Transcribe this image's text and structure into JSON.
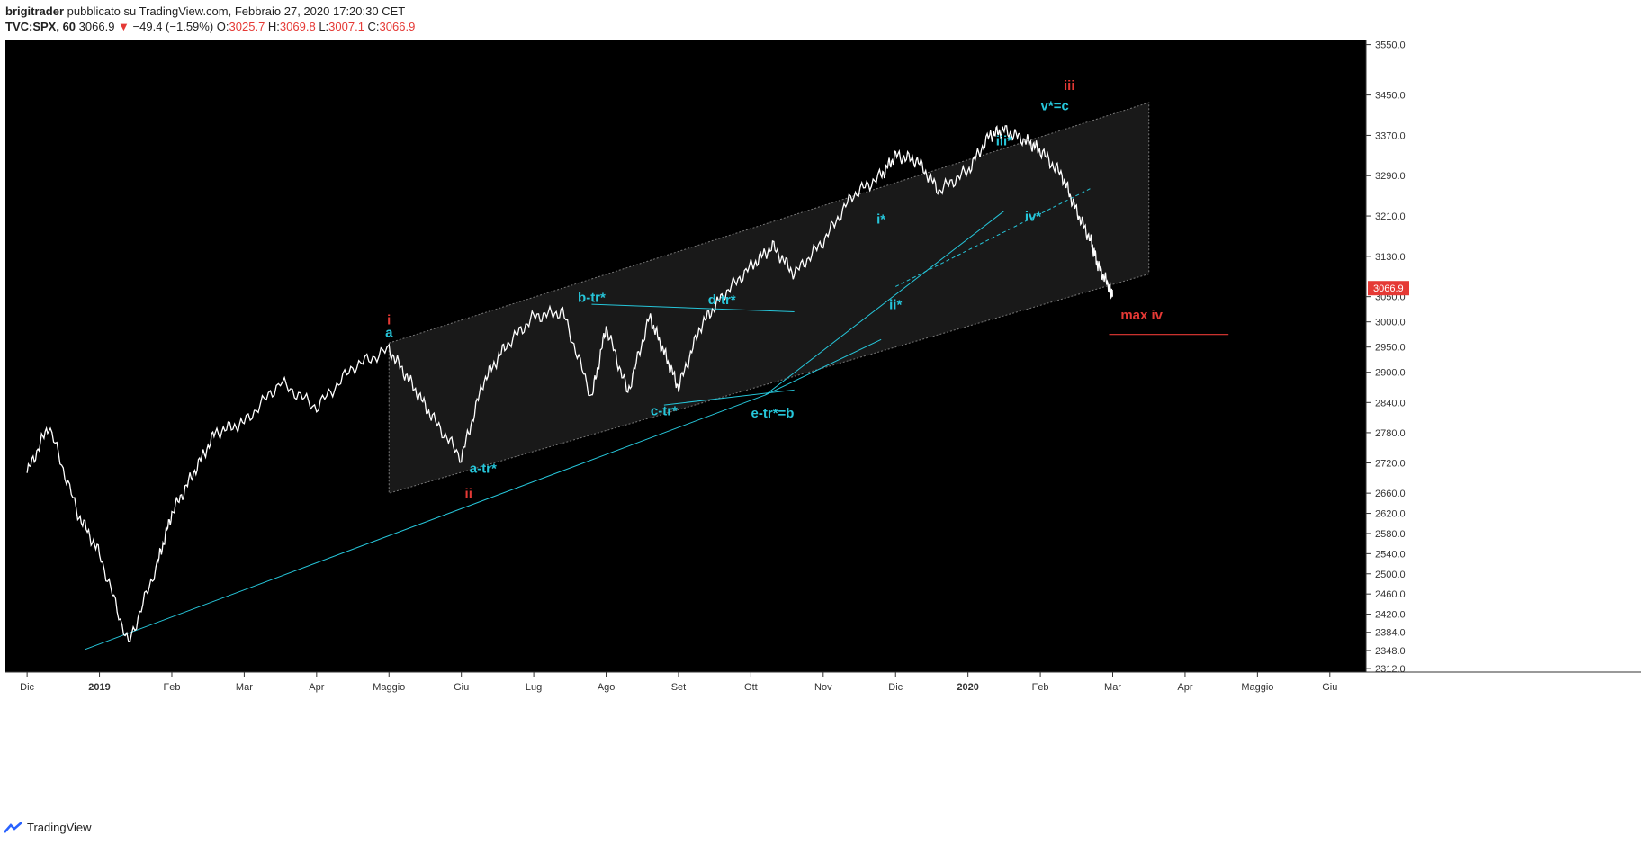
{
  "header": {
    "author": "brigitrader",
    "published": "pubblicato su TradingView.com, Febbraio 27, 2020 17:20:30 CET",
    "symbol": "TVC:SPX, 60",
    "last": "3066.9",
    "change": "−49.4 (−1.59%)",
    "o_label": "O:",
    "o_val": "3025.7",
    "h_label": "H:",
    "h_val": "3069.8",
    "l_label": "L:",
    "l_val": "3007.1",
    "c_label": "C:",
    "c_val": "3066.9"
  },
  "footer": {
    "brand": "TradingView"
  },
  "colors": {
    "background": "#000000",
    "price": "#ffffff",
    "annot_cyan": "#26c6da",
    "annot_red": "#e53935",
    "channel": "#1a1a1a"
  },
  "chart_data": {
    "type": "line",
    "yaxis_ticks": [
      "3550.0",
      "3450.0",
      "3370.0",
      "3290.0",
      "3210.0",
      "3130.0",
      "3050.0",
      "3000.0",
      "2950.0",
      "2900.0",
      "2840.0",
      "2780.0",
      "2720.0",
      "2660.0",
      "2620.0",
      "2580.0",
      "2540.0",
      "2500.0",
      "2460.0",
      "2420.0",
      "2384.0",
      "2348.0",
      "2312.0"
    ],
    "y_last_label": "3066.9",
    "xaxis_ticks": [
      "Dic",
      "2019",
      "Feb",
      "Mar",
      "Apr",
      "Maggio",
      "Giu",
      "Lug",
      "Ago",
      "Set",
      "Ott",
      "Nov",
      "Dic",
      "2020",
      "Feb",
      "Mar",
      "Apr",
      "Maggio",
      "Giu"
    ],
    "x": [
      0,
      0.3,
      0.7,
      1,
      1.4,
      1.8,
      2,
      2.3,
      2.6,
      3,
      3.5,
      4,
      4.5,
      5,
      5.3,
      5.6,
      6,
      6.3,
      6.6,
      7,
      7.4,
      7.8,
      8,
      8.3,
      8.6,
      8.8,
      9,
      9.3,
      9.6,
      10,
      10.3,
      10.6,
      11,
      11.4,
      11.8,
      12,
      12.3,
      12.6,
      13,
      13.3,
      13.5,
      13.8,
      14,
      14.3,
      14.5,
      14.7,
      14.8,
      14.95,
      15.0
    ],
    "y": [
      2700,
      2795,
      2620,
      2540,
      2360,
      2520,
      2620,
      2700,
      2780,
      2800,
      2880,
      2830,
      2910,
      2945,
      2880,
      2810,
      2730,
      2880,
      2950,
      3010,
      3020,
      2850,
      2990,
      2860,
      3010,
      2940,
      2870,
      2990,
      3050,
      3110,
      3150,
      3095,
      3160,
      3250,
      3290,
      3330,
      3320,
      3260,
      3300,
      3370,
      3380,
      3360,
      3340,
      3290,
      3220,
      3160,
      3110,
      3070,
      3050
    ],
    "annotations": [
      {
        "text": "i",
        "color": "red",
        "x": 5,
        "y": 2995
      },
      {
        "text": "a",
        "color": "cyan",
        "x": 5,
        "y": 2970
      },
      {
        "text": "ii",
        "color": "red",
        "x": 6.1,
        "y": 2650
      },
      {
        "text": "a-tr*",
        "color": "cyan",
        "x": 6.3,
        "y": 2700
      },
      {
        "text": "b-tr*",
        "color": "cyan",
        "x": 7.8,
        "y": 3040
      },
      {
        "text": "c-tr*",
        "color": "cyan",
        "x": 8.8,
        "y": 2815
      },
      {
        "text": "d-tr*",
        "color": "cyan",
        "x": 9.6,
        "y": 3035
      },
      {
        "text": "e-tr*=b",
        "color": "cyan",
        "x": 10.3,
        "y": 2810
      },
      {
        "text": "i*",
        "color": "cyan",
        "x": 11.8,
        "y": 3195
      },
      {
        "text": "ii*",
        "color": "cyan",
        "x": 12,
        "y": 3025
      },
      {
        "text": "iii*",
        "color": "cyan",
        "x": 13.5,
        "y": 3350
      },
      {
        "text": "iv*",
        "color": "cyan",
        "x": 13.9,
        "y": 3200
      },
      {
        "text": "v*=c",
        "color": "cyan",
        "x": 14.2,
        "y": 3420
      },
      {
        "text": "iii",
        "color": "red",
        "x": 14.4,
        "y": 3460
      },
      {
        "text": "max iv",
        "color": "red",
        "x": 15.4,
        "y": 3005
      }
    ]
  }
}
